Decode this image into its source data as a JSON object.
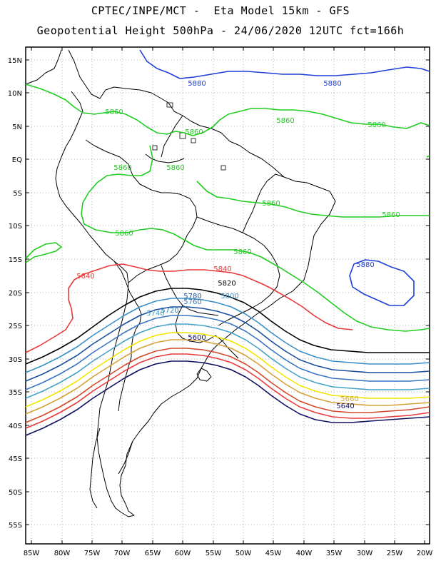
{
  "header": {
    "line1": "CPTEC/INPE/MCT -  Eta Model 15km - GFS",
    "line2": "Geopotential Height 500hPa - 24/06/2020 12UTC fct=166h"
  },
  "axes": {
    "lat_labels": [
      "15N",
      "10N",
      "5N",
      "EQ",
      "5S",
      "10S",
      "15S",
      "20S",
      "25S",
      "30S",
      "35S",
      "40S",
      "45S",
      "50S",
      "55S"
    ],
    "lon_labels": [
      "85W",
      "80W",
      "75W",
      "70W",
      "65W",
      "60W",
      "55W",
      "50W",
      "45W",
      "40W",
      "35W",
      "30W",
      "25W",
      "20W"
    ]
  },
  "colors": {
    "c5880": "#1f3fd6",
    "c5860": "#22cc22",
    "c5840": "#e83a3a",
    "c5820": "#000000",
    "c5800": "#3b8fc8",
    "c5780": "#1a4f9e",
    "c5760": "#3a76c2",
    "c5740": "#46a2c8",
    "c5720": "#2d7fb8",
    "c5700": "#f2e600",
    "c5680": "#d7a23a",
    "c5660": "#d24a2a",
    "c5640": "#101060",
    "coast": "#000000",
    "grid": "#9a9a9a"
  },
  "contour_labels": [
    {
      "text": "5880",
      "color": "c5880"
    },
    {
      "text": "5880",
      "color": "c5880"
    },
    {
      "text": "5880",
      "color": "c5880"
    },
    {
      "text": "5860",
      "color": "c5860"
    },
    {
      "text": "5860",
      "color": "c5860"
    },
    {
      "text": "5860",
      "color": "c5860"
    },
    {
      "text": "5860",
      "color": "c5860"
    },
    {
      "text": "5860",
      "color": "c5860"
    },
    {
      "text": "5860",
      "color": "c5860"
    },
    {
      "text": "5860",
      "color": "c5860"
    },
    {
      "text": "5860",
      "color": "c5860"
    },
    {
      "text": "5860",
      "color": "c5860"
    },
    {
      "text": "5860",
      "color": "c5860"
    },
    {
      "text": "5840",
      "color": "c5840"
    },
    {
      "text": "5840",
      "color": "c5840"
    },
    {
      "text": "5820",
      "color": "c5820"
    },
    {
      "text": "5800",
      "color": "c5800"
    },
    {
      "text": "5780",
      "color": "c5780"
    },
    {
      "text": "5760",
      "color": "c5760"
    },
    {
      "text": "5740",
      "color": "c5740"
    },
    {
      "text": "5720",
      "color": "c5720"
    },
    {
      "text": "5600",
      "color": "c5640"
    },
    {
      "text": "5660",
      "color": "c5680"
    },
    {
      "text": "5640",
      "color": "c5640"
    }
  ]
}
